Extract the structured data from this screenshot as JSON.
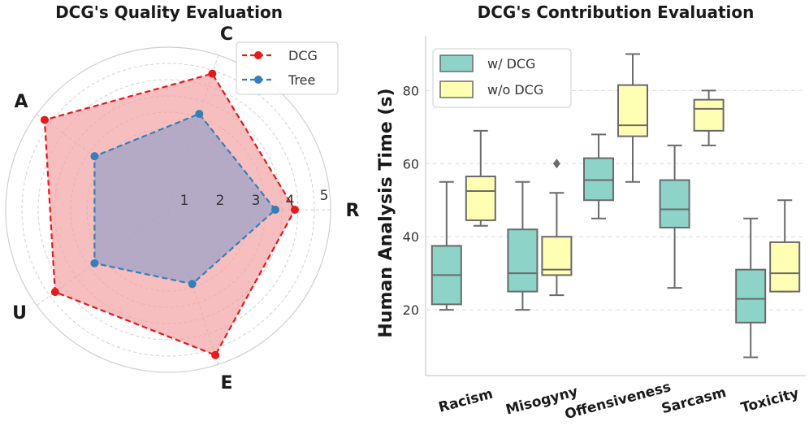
{
  "chart_data": [
    {
      "type": "radar",
      "title": "DCG's Quality Evaluation",
      "axes": [
        "R",
        "C",
        "A",
        "U",
        "E"
      ],
      "radial_ticks": [
        "1",
        "2",
        "3",
        "4",
        "5"
      ],
      "rlim": [
        0,
        5
      ],
      "grid": true,
      "legend_position": "top-right",
      "series": [
        {
          "name": "DCG",
          "color": "#e41a1c",
          "fill": "#f4a3a5",
          "values": [
            3.9,
            4.4,
            4.7,
            4.3,
            4.7
          ]
        },
        {
          "name": "Tree",
          "color": "#377eb8",
          "fill": "#9fa3c8",
          "values": [
            3.3,
            3.1,
            2.8,
            2.8,
            2.4
          ]
        }
      ]
    },
    {
      "type": "box",
      "title": "DCG's Contribution Evaluation",
      "ylabel": "Human Analysis Time (s)",
      "xlabel": "",
      "categories": [
        "Racism",
        "Misogyny",
        "Offensiveness",
        "Sarcasm",
        "Toxicity"
      ],
      "yticks": [
        "20",
        "40",
        "60",
        "80"
      ],
      "ylim": [
        2,
        95
      ],
      "grid": true,
      "legend_position": "top-left",
      "series": [
        {
          "name": "w/ DCG",
          "color": "#8dd3c7",
          "boxes": [
            {
              "min": 20,
              "q1": 21.5,
              "median": 29.5,
              "q3": 37.5,
              "max": 55,
              "outliers": []
            },
            {
              "min": 20,
              "q1": 25,
              "median": 30,
              "q3": 42,
              "max": 55,
              "outliers": []
            },
            {
              "min": 45,
              "q1": 50,
              "median": 55.5,
              "q3": 61.5,
              "max": 68,
              "outliers": []
            },
            {
              "min": 26,
              "q1": 42.5,
              "median": 47.5,
              "q3": 55.5,
              "max": 65,
              "outliers": []
            },
            {
              "min": 7,
              "q1": 16.5,
              "median": 23,
              "q3": 31,
              "max": 45,
              "outliers": []
            }
          ]
        },
        {
          "name": "w/o DCG",
          "color": "#ffffb3",
          "boxes": [
            {
              "min": 43,
              "q1": 44.5,
              "median": 52.5,
              "q3": 56.5,
              "max": 69,
              "outliers": []
            },
            {
              "min": 24,
              "q1": 29.5,
              "median": 31,
              "q3": 40,
              "max": 52,
              "outliers": [
                60
              ]
            },
            {
              "min": 55,
              "q1": 67.5,
              "median": 70.5,
              "q3": 81.5,
              "max": 90,
              "outliers": []
            },
            {
              "min": 65,
              "q1": 69,
              "median": 75,
              "q3": 77.5,
              "max": 80,
              "outliers": []
            },
            {
              "min": 25,
              "q1": 25,
              "median": 30,
              "q3": 38.5,
              "max": 50,
              "outliers": []
            }
          ]
        }
      ]
    }
  ]
}
